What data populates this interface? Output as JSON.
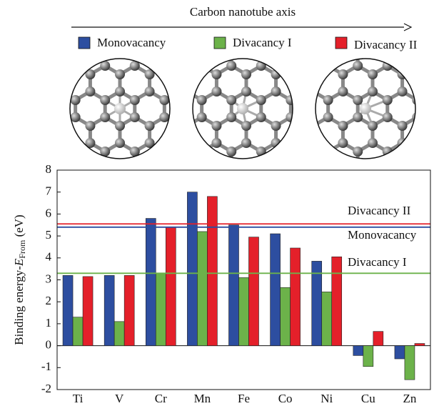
{
  "chart_data": {
    "type": "bar",
    "top_label": "Carbon nanotube axis",
    "ylabel": [
      "Binding energy-",
      "E",
      "From",
      " (eV)"
    ],
    "categories": [
      "Ti",
      "V",
      "Cr",
      "Mn",
      "Fe",
      "Co",
      "Ni",
      "Cu",
      "Zn"
    ],
    "series": [
      {
        "name": "Monovacancy",
        "color": "#2d4ea0",
        "values": [
          3.2,
          3.2,
          5.8,
          7.0,
          5.5,
          5.1,
          3.85,
          -0.45,
          -0.6
        ]
      },
      {
        "name": "Divacancy I",
        "color": "#6cb24a",
        "values": [
          1.3,
          1.1,
          3.3,
          5.2,
          3.1,
          2.65,
          2.45,
          -0.95,
          -1.55
        ]
      },
      {
        "name": "Divacancy II",
        "color": "#e4202a",
        "values": [
          3.15,
          3.2,
          5.4,
          6.8,
          4.95,
          4.45,
          4.05,
          0.65,
          0.1
        ]
      }
    ],
    "reference_lines": [
      {
        "label": "Divacancy II",
        "value": 5.55,
        "color": "#e4202a"
      },
      {
        "label": "Monovacancy",
        "value": 5.4,
        "color": "#2d4ea0"
      },
      {
        "label": "Divacancy I",
        "value": 3.3,
        "color": "#6cb24a"
      }
    ],
    "ylim": [
      -2,
      8
    ],
    "yticks": [
      -2,
      -1,
      0,
      1,
      2,
      3,
      4,
      5,
      6,
      7,
      8
    ]
  }
}
